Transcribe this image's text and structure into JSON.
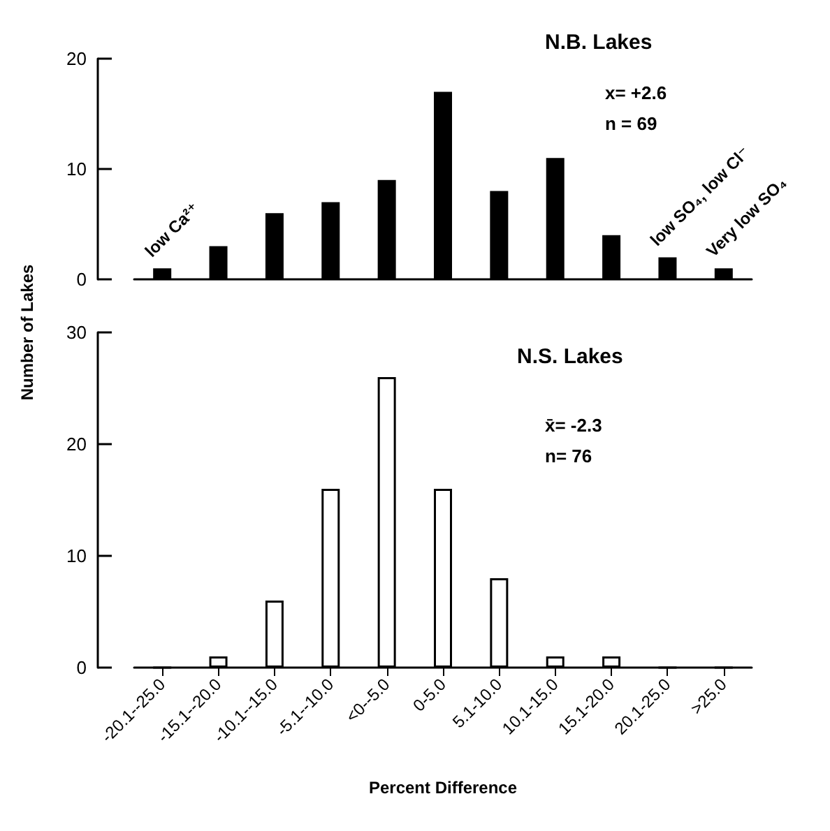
{
  "chart_data": [
    {
      "type": "bar",
      "title": "N.B. Lakes",
      "ylabel": "Number of Lakes",
      "categories": [
        "-20.1--25.0",
        "-15.1--20.0",
        "-10.1--15.0",
        "-5.1--10.0",
        "<0--5.0",
        "0-5.0",
        "5.1-10.0",
        "10.1-15.0",
        "15.1-20.0",
        "20.1-25.0",
        ">25.0"
      ],
      "values": [
        1,
        3,
        6,
        7,
        9,
        17,
        8,
        11,
        4,
        2,
        1
      ],
      "color": "#000000",
      "ylim": [
        0,
        20
      ],
      "yticks": [
        0,
        10,
        20
      ],
      "grid": false,
      "tick_labels": "y",
      "annotations": [
        "x= +2.6",
        "n = 69",
        {
          "text": "low Ca²⁺",
          "x": "-20.1--25.0",
          "y": 1
        },
        {
          "text": "low SO₄, low Cl⁻",
          "x": "20.1-25.0",
          "y": 2
        },
        {
          "text": "Very low SO₄",
          "x": ">25.0",
          "y": 1
        }
      ]
    },
    {
      "type": "bar",
      "title": "N.S. Lakes",
      "xlabel": "Percent Difference",
      "categories": [
        "-20.1--25.0",
        "-15.1--20.0",
        "-10.1--15.0",
        "-5.1--10.0",
        "<0--5.0",
        "0-5.0",
        "5.1-10.0",
        "10.1-15.0",
        "15.1-20.0",
        "20.1-25.0",
        ">25.0"
      ],
      "values": [
        0,
        1,
        6,
        16,
        26,
        16,
        8,
        1,
        1,
        0,
        0
      ],
      "color": "#ffffff",
      "ylim": [
        0,
        30
      ],
      "yticks": [
        0,
        10,
        20,
        30
      ],
      "grid": false,
      "annotations": [
        "x̄= -2.3",
        "n= 76"
      ]
    }
  ]
}
